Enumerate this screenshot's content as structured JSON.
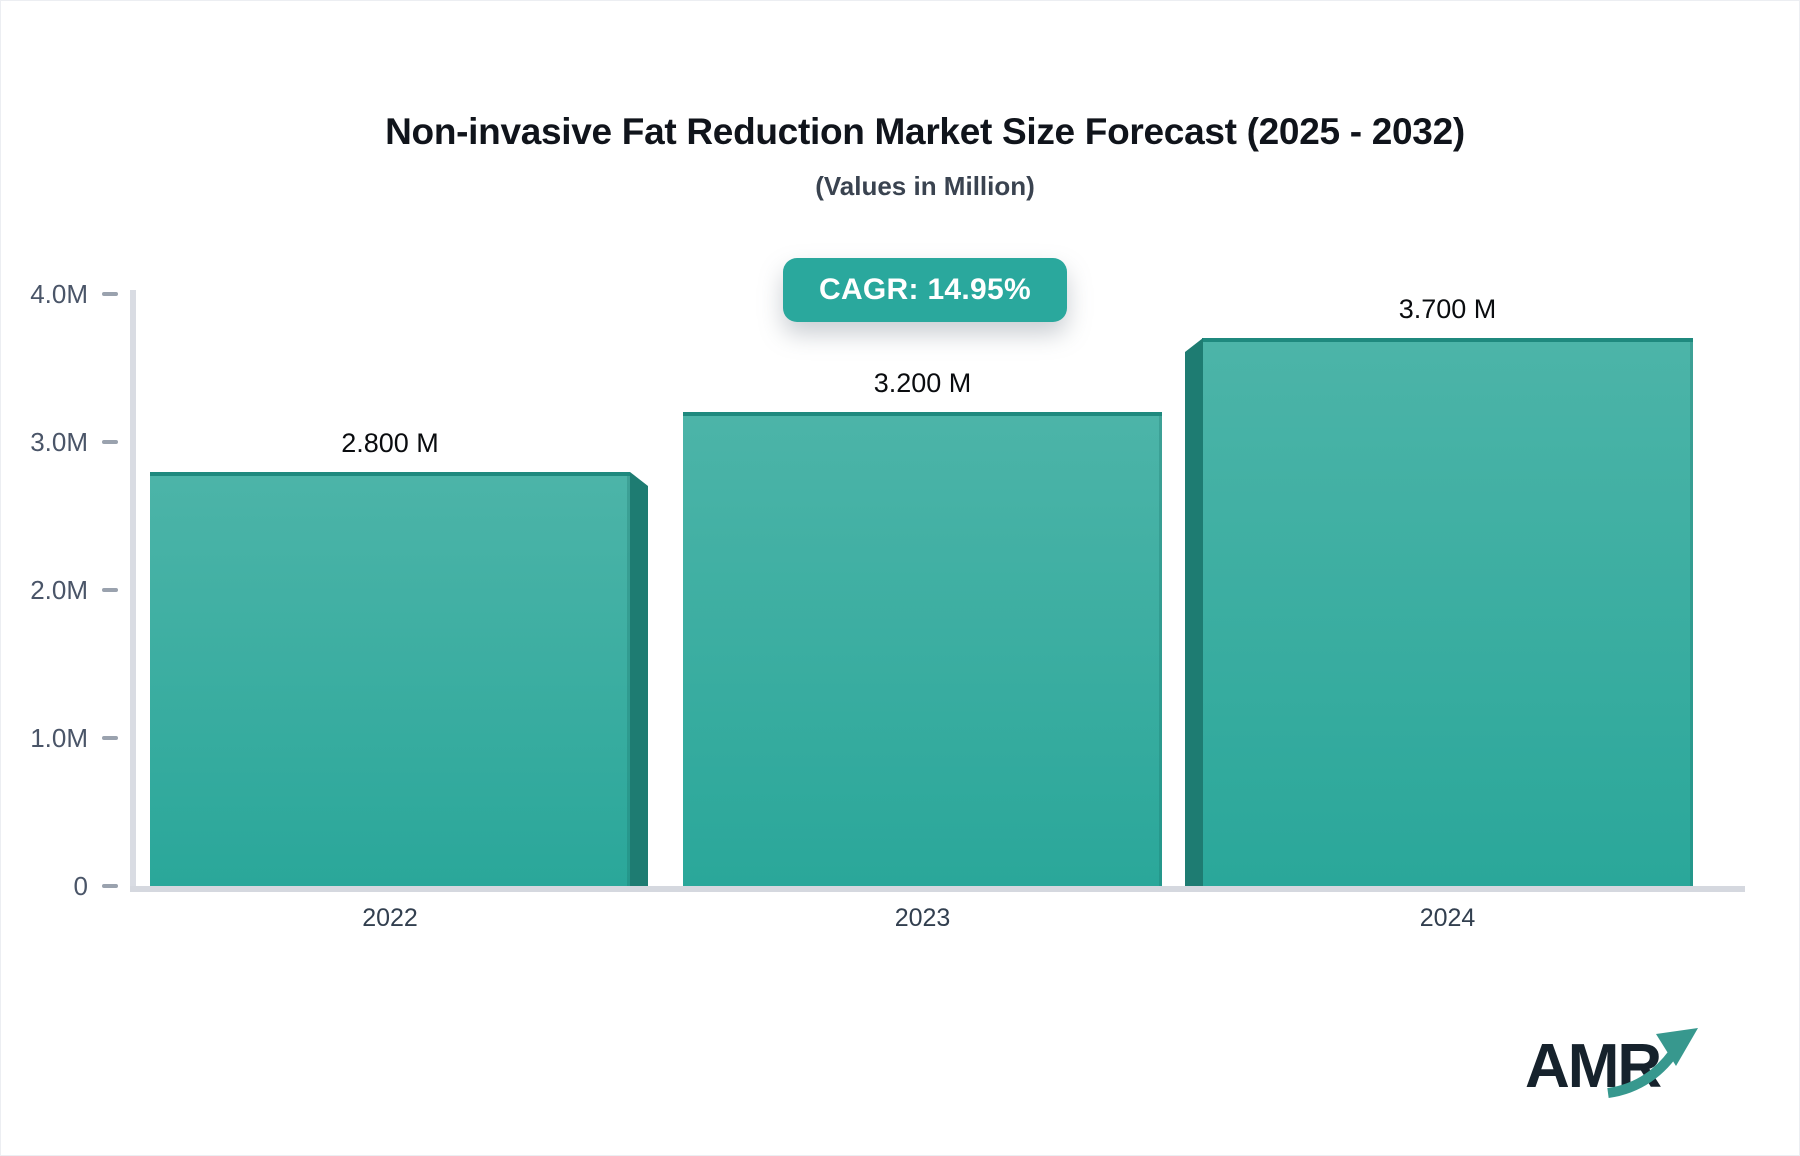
{
  "header": {
    "title": "Non-invasive Fat Reduction Market Size Forecast (2025 - 2032)",
    "subtitle": "(Values in Million)"
  },
  "cagr_badge": {
    "label": "CAGR: 14.95%"
  },
  "chart_data": {
    "type": "bar",
    "title": "Non-invasive Fat Reduction Market Size Forecast (2025 - 2032)",
    "subtitle": "(Values in Million)",
    "unit": "Million",
    "categories": [
      "2022",
      "2023",
      "2024"
    ],
    "values": [
      2.8,
      3.2,
      3.7
    ],
    "value_labels": [
      "2.800 M",
      "3.200 M",
      "3.700 M"
    ],
    "cagr_label": "CAGR: 14.95%",
    "cagr_value_pct": 14.95,
    "ylim": [
      0,
      4
    ],
    "y_ticks": [
      {
        "label": "4.0M",
        "value": 4.0
      },
      {
        "label": "3.0M",
        "value": 3.0
      },
      {
        "label": "2.0M",
        "value": 2.0
      },
      {
        "label": "1.0M",
        "value": 1.0
      },
      {
        "label": "0",
        "value": 0.0
      }
    ],
    "grid": false,
    "legend": "none"
  },
  "branding": {
    "logo_text": "AMR",
    "arrow_icon": "growth-arrow-icon"
  },
  "colors": {
    "badge_bg": "#2aa89d",
    "badge_text": "#ffffff",
    "bar_top": "#4cb4a8",
    "bar_bottom": "#2aa79a",
    "bar_top_edge": "#1f897e",
    "bar_side": "#1e7c72",
    "axis_line": "#d5d8df",
    "tick_dash": "#9aa2ae",
    "tick_label": "#4a5568",
    "category_label": "#323f4f",
    "value_label": "#0a0c0f",
    "logo_text": "#16222c",
    "logo_arrow": "#37988e"
  }
}
